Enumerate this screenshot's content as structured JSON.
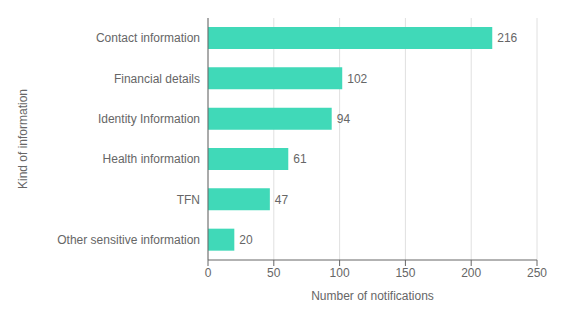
{
  "chart_data": {
    "type": "bar",
    "orientation": "horizontal",
    "categories": [
      "Other sensitive information",
      "TFN",
      "Health information",
      "Identity Information",
      "Financial details",
      "Contact information"
    ],
    "values": [
      20,
      47,
      61,
      94,
      102,
      216
    ],
    "color": "#40d9b8",
    "xlabel": "Number of notifications",
    "ylabel": "Kind of information",
    "xlim": [
      0,
      250
    ],
    "xticks": [
      0,
      50,
      100,
      150,
      200,
      250
    ],
    "grid": true,
    "data_labels": true
  }
}
